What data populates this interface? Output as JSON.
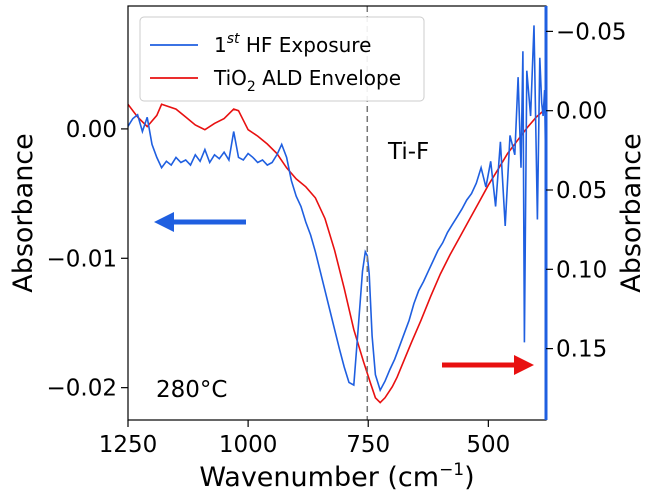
{
  "chart_data": {
    "type": "line",
    "xlabel": "Wavenumber (cm",
    "xlabel_sup": "−1",
    "xlabel_close": ")",
    "ylabel_left": "Absorbance",
    "ylabel_right": "Absorbance",
    "xlim": [
      1250,
      380
    ],
    "ylim_left": [
      -0.0225,
      0.0095
    ],
    "ylim_right": [
      0.195,
      -0.066
    ],
    "x_ticks": [
      1250,
      1000,
      750,
      500
    ],
    "x_tick_labels": [
      "1250",
      "1000",
      "750",
      "500"
    ],
    "y_left_ticks": [
      0.0,
      -0.01,
      -0.02
    ],
    "y_left_tick_labels": [
      "0.00",
      "−0.01",
      "−0.02"
    ],
    "y_right_ticks": [
      -0.05,
      0.0,
      0.05,
      0.1,
      0.15
    ],
    "y_right_tick_labels": [
      "−0.05",
      "0.00",
      "0.05",
      "0.10",
      "0.15"
    ],
    "legend_placement": "upper-left",
    "grid": false,
    "vline": {
      "x": 752,
      "style": "dashed",
      "color": "#777777"
    },
    "annotations": {
      "peak_label": "Ti-F",
      "temperature": "280°C"
    },
    "arrows": [
      {
        "name": "left-axis-arrow",
        "direction": "left",
        "color": "#1f5fe0"
      },
      {
        "name": "right-axis-arrow",
        "direction": "right",
        "color": "#e81010"
      }
    ],
    "series": [
      {
        "name_main": "1",
        "name_sup": "st",
        "name_rest": " HF Exposure",
        "color": "#1f5fe0",
        "axis": "left",
        "x": [
          1250,
          1240,
          1230,
          1220,
          1210,
          1200,
          1190,
          1180,
          1170,
          1160,
          1150,
          1140,
          1130,
          1120,
          1110,
          1100,
          1090,
          1080,
          1070,
          1060,
          1050,
          1040,
          1030,
          1020,
          1010,
          1000,
          990,
          980,
          970,
          960,
          950,
          940,
          930,
          920,
          910,
          900,
          890,
          880,
          870,
          860,
          850,
          840,
          830,
          820,
          810,
          800,
          790,
          780,
          770,
          762,
          756,
          752,
          748,
          742,
          735,
          725,
          715,
          705,
          695,
          685,
          675,
          665,
          655,
          645,
          635,
          625,
          615,
          605,
          595,
          585,
          575,
          565,
          555,
          545,
          535,
          525,
          515,
          505,
          495,
          485,
          475,
          465,
          455,
          445,
          438,
          432,
          428,
          425,
          420,
          412,
          405,
          398,
          393,
          389,
          386,
          383,
          381
        ],
        "y": [
          0.0002,
          0.0008,
          0.0011,
          -0.0002,
          0.0009,
          -0.0012,
          -0.0022,
          -0.003,
          -0.0025,
          -0.0028,
          -0.0022,
          -0.0026,
          -0.0024,
          -0.0028,
          -0.002,
          -0.0025,
          -0.0016,
          -0.0026,
          -0.002,
          -0.0023,
          -0.0018,
          -0.0024,
          -0.0002,
          -0.0022,
          -0.0024,
          -0.0019,
          -0.0022,
          -0.0026,
          -0.0024,
          -0.0028,
          -0.0026,
          -0.002,
          -0.0012,
          -0.0022,
          -0.004,
          -0.0052,
          -0.006,
          -0.0072,
          -0.0082,
          -0.0095,
          -0.011,
          -0.0125,
          -0.014,
          -0.0155,
          -0.017,
          -0.0184,
          -0.0196,
          -0.0198,
          -0.015,
          -0.011,
          -0.0095,
          -0.0098,
          -0.0112,
          -0.016,
          -0.019,
          -0.0202,
          -0.0195,
          -0.0186,
          -0.0178,
          -0.0168,
          -0.0158,
          -0.0148,
          -0.0135,
          -0.0125,
          -0.0118,
          -0.011,
          -0.0102,
          -0.0094,
          -0.0088,
          -0.008,
          -0.0074,
          -0.0068,
          -0.0062,
          -0.0055,
          -0.005,
          -0.0042,
          -0.003,
          -0.0045,
          -0.0025,
          -0.006,
          -0.001,
          -0.0075,
          -0.0005,
          -0.002,
          0.004,
          -0.003,
          0.006,
          -0.0165,
          0.0045,
          0.001,
          0.008,
          -0.007,
          0.0055,
          0.002,
          0.001,
          0.003,
          -0.002
        ]
      },
      {
        "name_main": "TiO",
        "name_sub": "2",
        "name_rest": " ALD Envelope",
        "color": "#e81010",
        "axis": "right",
        "x": [
          1250,
          1230,
          1210,
          1190,
          1180,
          1170,
          1150,
          1130,
          1110,
          1090,
          1070,
          1050,
          1030,
          1020,
          1010,
          1000,
          980,
          960,
          940,
          920,
          900,
          880,
          860,
          840,
          820,
          800,
          780,
          760,
          745,
          735,
          725,
          715,
          700,
          690,
          675,
          660,
          640,
          620,
          600,
          580,
          560,
          540,
          520,
          500,
          480,
          460,
          440,
          420,
          400,
          385
        ],
        "y": [
          -0.004,
          0.004,
          0.01,
          0.003,
          -0.004,
          -0.003,
          -0.001,
          0.004,
          0.009,
          0.012,
          0.008,
          0.005,
          -0.001,
          0.0,
          0.006,
          0.012,
          0.016,
          0.021,
          0.027,
          0.036,
          0.043,
          0.048,
          0.055,
          0.068,
          0.088,
          0.112,
          0.138,
          0.158,
          0.172,
          0.181,
          0.184,
          0.181,
          0.174,
          0.168,
          0.157,
          0.146,
          0.132,
          0.117,
          0.103,
          0.091,
          0.08,
          0.069,
          0.058,
          0.047,
          0.037,
          0.027,
          0.019,
          0.011,
          0.004,
          0.0
        ]
      }
    ]
  }
}
